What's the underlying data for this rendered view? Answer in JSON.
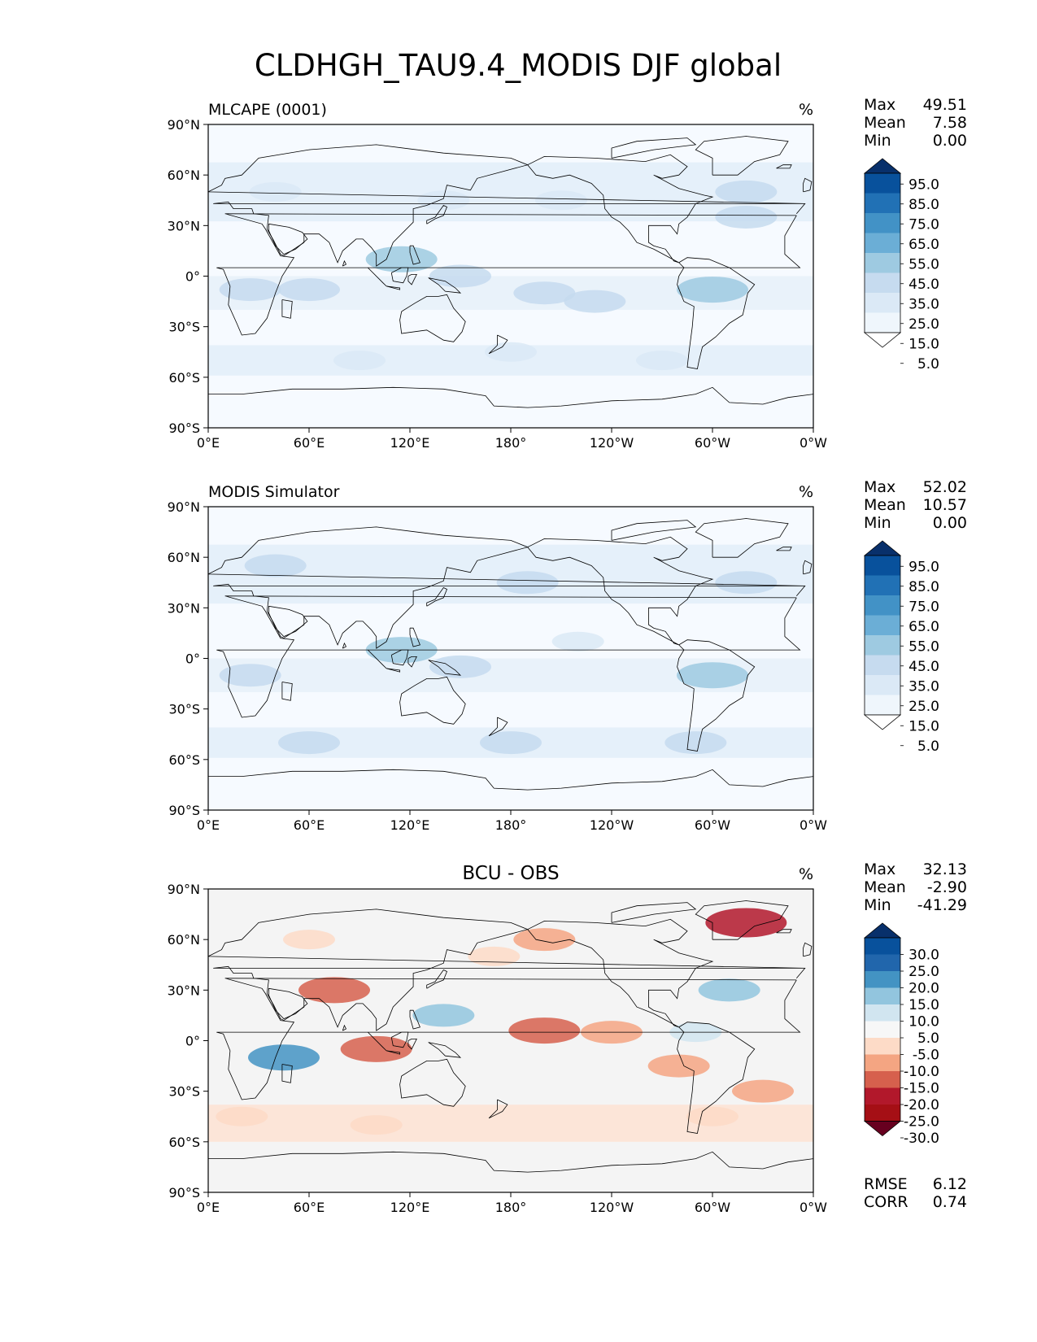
{
  "figure": {
    "title": "CLDHGH_TAU9.4_MODIS DJF global"
  },
  "chart_data": [
    {
      "type": "map",
      "panel": "top",
      "title": "MLCAPE (0001)",
      "units": "%",
      "projection": "PlateCarree",
      "lon_ticks": [
        "0°E",
        "60°E",
        "120°E",
        "180°",
        "120°W",
        "60°W",
        "0°W"
      ],
      "lat_ticks": [
        "90°N",
        "60°N",
        "30°N",
        "0°",
        "30°S",
        "60°S",
        "90°S"
      ],
      "stats": {
        "labels": [
          "Max",
          "Mean",
          "Min"
        ],
        "values": [
          "49.51",
          "7.58",
          "0.00"
        ]
      },
      "colorbar": {
        "labels": [
          "95.0",
          "85.0",
          "75.0",
          "65.0",
          "55.0",
          "45.0",
          "35.0",
          "25.0",
          "15.0",
          "5.0"
        ],
        "colors": [
          "#08306b",
          "#08519c",
          "#2171b5",
          "#4292c6",
          "#6baed6",
          "#9ecae1",
          "#c6dbef",
          "#dbe9f6",
          "#eff6fc",
          "#ffffff"
        ],
        "extend": "both"
      },
      "features": [
        {
          "lon": 115,
          "lat": 10,
          "level": 3
        },
        {
          "lon": 150,
          "lat": 0,
          "level": 2
        },
        {
          "lon": 200,
          "lat": -10,
          "level": 2
        },
        {
          "lon": 230,
          "lat": -15,
          "level": 2
        },
        {
          "lon": 300,
          "lat": -8,
          "level": 3
        },
        {
          "lon": 25,
          "lat": -8,
          "level": 2
        },
        {
          "lon": 60,
          "lat": -8,
          "level": 2
        },
        {
          "lon": 320,
          "lat": 35,
          "level": 2
        },
        {
          "lon": 320,
          "lat": 50,
          "level": 2
        },
        {
          "lon": 210,
          "lat": 45,
          "level": 1
        },
        {
          "lon": 140,
          "lat": 45,
          "level": 1
        },
        {
          "lon": 40,
          "lat": 50,
          "level": 1
        },
        {
          "lon": 180,
          "lat": -45,
          "level": 1
        },
        {
          "lon": 90,
          "lat": -50,
          "level": 1
        },
        {
          "lon": 270,
          "lat": -50,
          "level": 1
        }
      ]
    },
    {
      "type": "map",
      "panel": "middle",
      "title": "MODIS Simulator",
      "units": "%",
      "projection": "PlateCarree",
      "lon_ticks": [
        "0°E",
        "60°E",
        "120°E",
        "180°",
        "120°W",
        "60°W",
        "0°W"
      ],
      "lat_ticks": [
        "90°N",
        "60°N",
        "30°N",
        "0°",
        "30°S",
        "60°S",
        "90°S"
      ],
      "stats": {
        "labels": [
          "Max",
          "Mean",
          "Min"
        ],
        "values": [
          "52.02",
          "10.57",
          "0.00"
        ]
      },
      "colorbar": {
        "labels": [
          "95.0",
          "85.0",
          "75.0",
          "65.0",
          "55.0",
          "45.0",
          "35.0",
          "25.0",
          "15.0",
          "5.0"
        ],
        "colors": [
          "#08306b",
          "#08519c",
          "#2171b5",
          "#4292c6",
          "#6baed6",
          "#9ecae1",
          "#c6dbef",
          "#dbe9f6",
          "#eff6fc",
          "#ffffff"
        ],
        "extend": "both"
      },
      "features": [
        {
          "lon": 115,
          "lat": 5,
          "level": 3
        },
        {
          "lon": 150,
          "lat": -5,
          "level": 2
        },
        {
          "lon": 300,
          "lat": -10,
          "level": 3
        },
        {
          "lon": 25,
          "lat": -10,
          "level": 2
        },
        {
          "lon": 190,
          "lat": 45,
          "level": 2
        },
        {
          "lon": 320,
          "lat": 45,
          "level": 2
        },
        {
          "lon": 40,
          "lat": 55,
          "level": 2
        },
        {
          "lon": 180,
          "lat": -50,
          "level": 2
        },
        {
          "lon": 60,
          "lat": -50,
          "level": 2
        },
        {
          "lon": 290,
          "lat": -50,
          "level": 2
        },
        {
          "lon": 220,
          "lat": 10,
          "level": 1
        }
      ]
    },
    {
      "type": "map",
      "panel": "bottom",
      "title": "BCU - OBS",
      "units": "%",
      "projection": "PlateCarree",
      "lon_ticks": [
        "0°E",
        "60°E",
        "120°E",
        "180°",
        "120°W",
        "60°W",
        "0°W"
      ],
      "lat_ticks": [
        "90°N",
        "60°N",
        "30°N",
        "0°",
        "30°S",
        "60°S",
        "90°S"
      ],
      "stats": {
        "labels": [
          "Max",
          "Mean",
          "Min"
        ],
        "values": [
          "32.13",
          "-2.90",
          "-41.29"
        ]
      },
      "metrics": {
        "labels": [
          "RMSE",
          "CORR"
        ],
        "values": [
          "6.12",
          "0.74"
        ]
      },
      "colorbar": {
        "labels": [
          "30.0",
          "25.0",
          "20.0",
          "15.0",
          "10.0",
          "5.0",
          "-5.0",
          "-10.0",
          "-15.0",
          "-20.0",
          "-25.0",
          "-30.0"
        ],
        "colors": [
          "#08306b",
          "#08519c",
          "#2166ac",
          "#4393c3",
          "#92c5de",
          "#d1e5f0",
          "#f7f7f7",
          "#fddbc7",
          "#f4a582",
          "#d6604d",
          "#b2182b",
          "#a50f15",
          "#67001f"
        ],
        "extend": "both"
      },
      "features": [
        {
          "lon": 200,
          "lat": 6,
          "level": -3
        },
        {
          "lon": 240,
          "lat": 5,
          "level": -2
        },
        {
          "lon": 100,
          "lat": -5,
          "level": -3
        },
        {
          "lon": 75,
          "lat": 30,
          "level": -3
        },
        {
          "lon": 45,
          "lat": -10,
          "level": 3
        },
        {
          "lon": 140,
          "lat": 15,
          "level": 2
        },
        {
          "lon": 320,
          "lat": 70,
          "level": -4
        },
        {
          "lon": 310,
          "lat": 30,
          "level": 2
        },
        {
          "lon": 170,
          "lat": 50,
          "level": -1
        },
        {
          "lon": 200,
          "lat": 60,
          "level": -2
        },
        {
          "lon": 280,
          "lat": -15,
          "level": -2
        },
        {
          "lon": 330,
          "lat": -30,
          "level": -2
        },
        {
          "lon": 100,
          "lat": -50,
          "level": -1
        },
        {
          "lon": 20,
          "lat": -45,
          "level": -1
        },
        {
          "lon": 300,
          "lat": -45,
          "level": -1
        },
        {
          "lon": 290,
          "lat": 5,
          "level": 1
        },
        {
          "lon": 60,
          "lat": 60,
          "level": -1
        }
      ]
    }
  ]
}
